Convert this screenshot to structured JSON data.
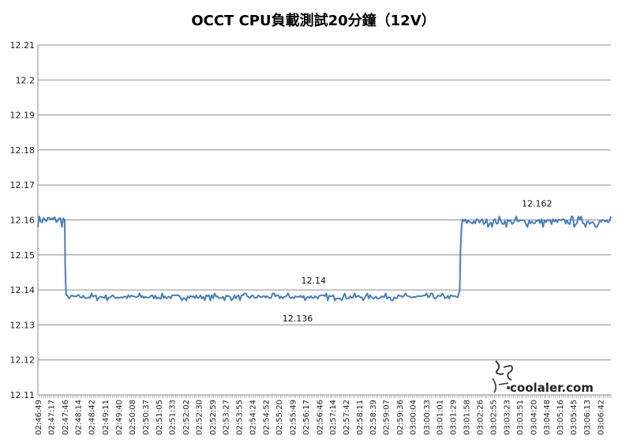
{
  "chart_data": {
    "type": "line",
    "title": "OCCT CPU負載測試20分鐘（12V）",
    "xlabel": "",
    "ylabel": "",
    "ylim": [
      12.11,
      12.21
    ],
    "yticks": [
      "12.11",
      "12.12",
      "12.13",
      "12.14",
      "12.15",
      "12.16",
      "12.17",
      "12.18",
      "12.19",
      "12.2",
      "12.21"
    ],
    "x_tick_labels": [
      "02:46:49",
      "02:47:17",
      "02:47:46",
      "02:48:14",
      "02:48:42",
      "02:49:11",
      "02:49:40",
      "02:50:08",
      "02:50:37",
      "02:51:05",
      "02:51:33",
      "02:52:02",
      "02:52:30",
      "02:52:59",
      "02:53:27",
      "02:53:55",
      "02:54:24",
      "02:54:52",
      "02:55:20",
      "02:55:49",
      "02:56:17",
      "02:56:46",
      "02:57:14",
      "02:57:42",
      "02:58:11",
      "02:58:39",
      "02:59:07",
      "02:59:36",
      "03:00:04",
      "03:00:33",
      "03:01:01",
      "03:01:29",
      "03:01:58",
      "03:02:26",
      "03:02:55",
      "03:03:23",
      "03:03:51",
      "03:04:20",
      "03:04:48",
      "03:05:16",
      "03:05:45",
      "03:06:13",
      "03:06:42"
    ],
    "grid": true,
    "legend": "none",
    "color": "#4a7ebb",
    "series": [
      {
        "x_start": "02:46:49",
        "x_end": "03:07:05",
        "segments": [
          {
            "from": "02:46:49",
            "to": "02:47:47",
            "level": 12.16,
            "noise": 0.002
          },
          {
            "from": "02:47:49",
            "to": "03:01:40",
            "level": 12.138,
            "noise": 0.001
          },
          {
            "from": "03:01:50",
            "to": "03:07:05",
            "level": 12.1595,
            "noise": 0.0015
          }
        ],
        "transitions": [
          {
            "time": "02:47:47",
            "value": 12.147
          },
          {
            "time": "02:47:48",
            "value": 12.142
          },
          {
            "time": "03:01:44",
            "value": 12.14
          },
          {
            "time": "03:01:46",
            "value": 12.152
          },
          {
            "time": "03:01:48",
            "value": 12.158
          }
        ]
      }
    ],
    "annotations": [
      {
        "text": "12.14",
        "x": "02:56:34",
        "y": 12.14,
        "position": "above"
      },
      {
        "text": "12.136",
        "x": "02:56:00",
        "y": 12.136,
        "position": "below"
      },
      {
        "text": "12.162",
        "x": "03:04:28",
        "y": 12.162,
        "position": "above"
      }
    ]
  },
  "watermark": {
    "text": "coolaler.com"
  }
}
